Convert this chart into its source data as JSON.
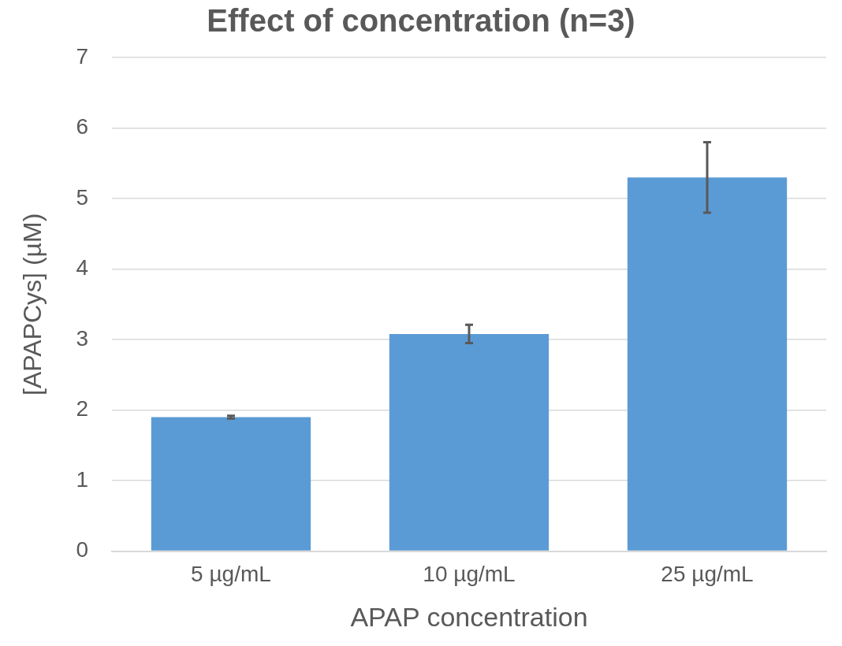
{
  "chart_data": {
    "type": "bar",
    "title": "Effect of concentration (n=3)",
    "xlabel": "APAP concentration",
    "ylabel": "[APAPCys] (µM)",
    "categories": [
      "5 µg/mL",
      "10 µg/mL",
      "25 µg/mL"
    ],
    "values": [
      1.9,
      3.08,
      5.3
    ],
    "errors": [
      0.02,
      0.13,
      0.5
    ],
    "color": "#5b9bd5",
    "ylim": [
      0,
      7
    ],
    "yticks": [
      0,
      1,
      2,
      3,
      4,
      5,
      6,
      7
    ],
    "grid": "y"
  }
}
